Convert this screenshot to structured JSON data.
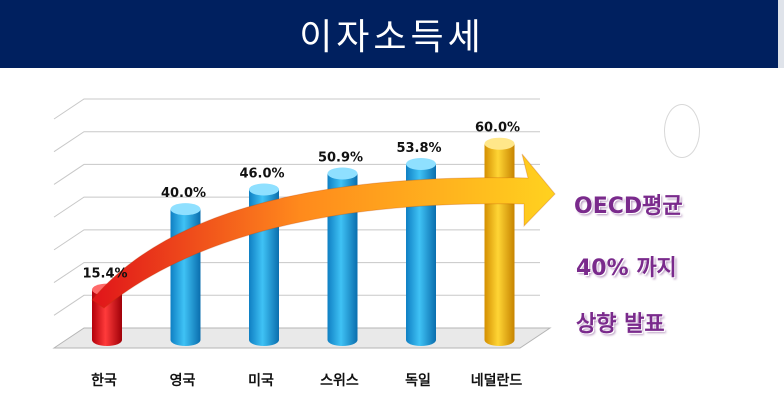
{
  "header": {
    "title": "이자소득세"
  },
  "notes": {
    "line1": "OECD평균",
    "line2": "40% 까지",
    "line3": "상향 발표"
  },
  "colors": {
    "title_bg": "#00205f",
    "bar_blue": "#29a9e6",
    "bar_red": "#e0141a",
    "bar_gold": "#f2b600",
    "note_text": "#7a2a8c"
  },
  "chart_data": {
    "type": "bar",
    "title": "",
    "categories": [
      "한국",
      "영국",
      "미국",
      "스위스",
      "독일",
      "네덜란드"
    ],
    "values": [
      15.4,
      40.0,
      46.0,
      50.9,
      53.8,
      60.0
    ],
    "value_labels": [
      "15.4%",
      "40.0%",
      "46.0%",
      "50.9%",
      "53.8%",
      "60.0%"
    ],
    "bar_colors": [
      "red",
      "blue",
      "blue",
      "blue",
      "blue",
      "gold"
    ],
    "ylim": [
      0,
      70
    ],
    "grid": true,
    "legend": "none",
    "annotation": "upward-trend-arrow"
  }
}
